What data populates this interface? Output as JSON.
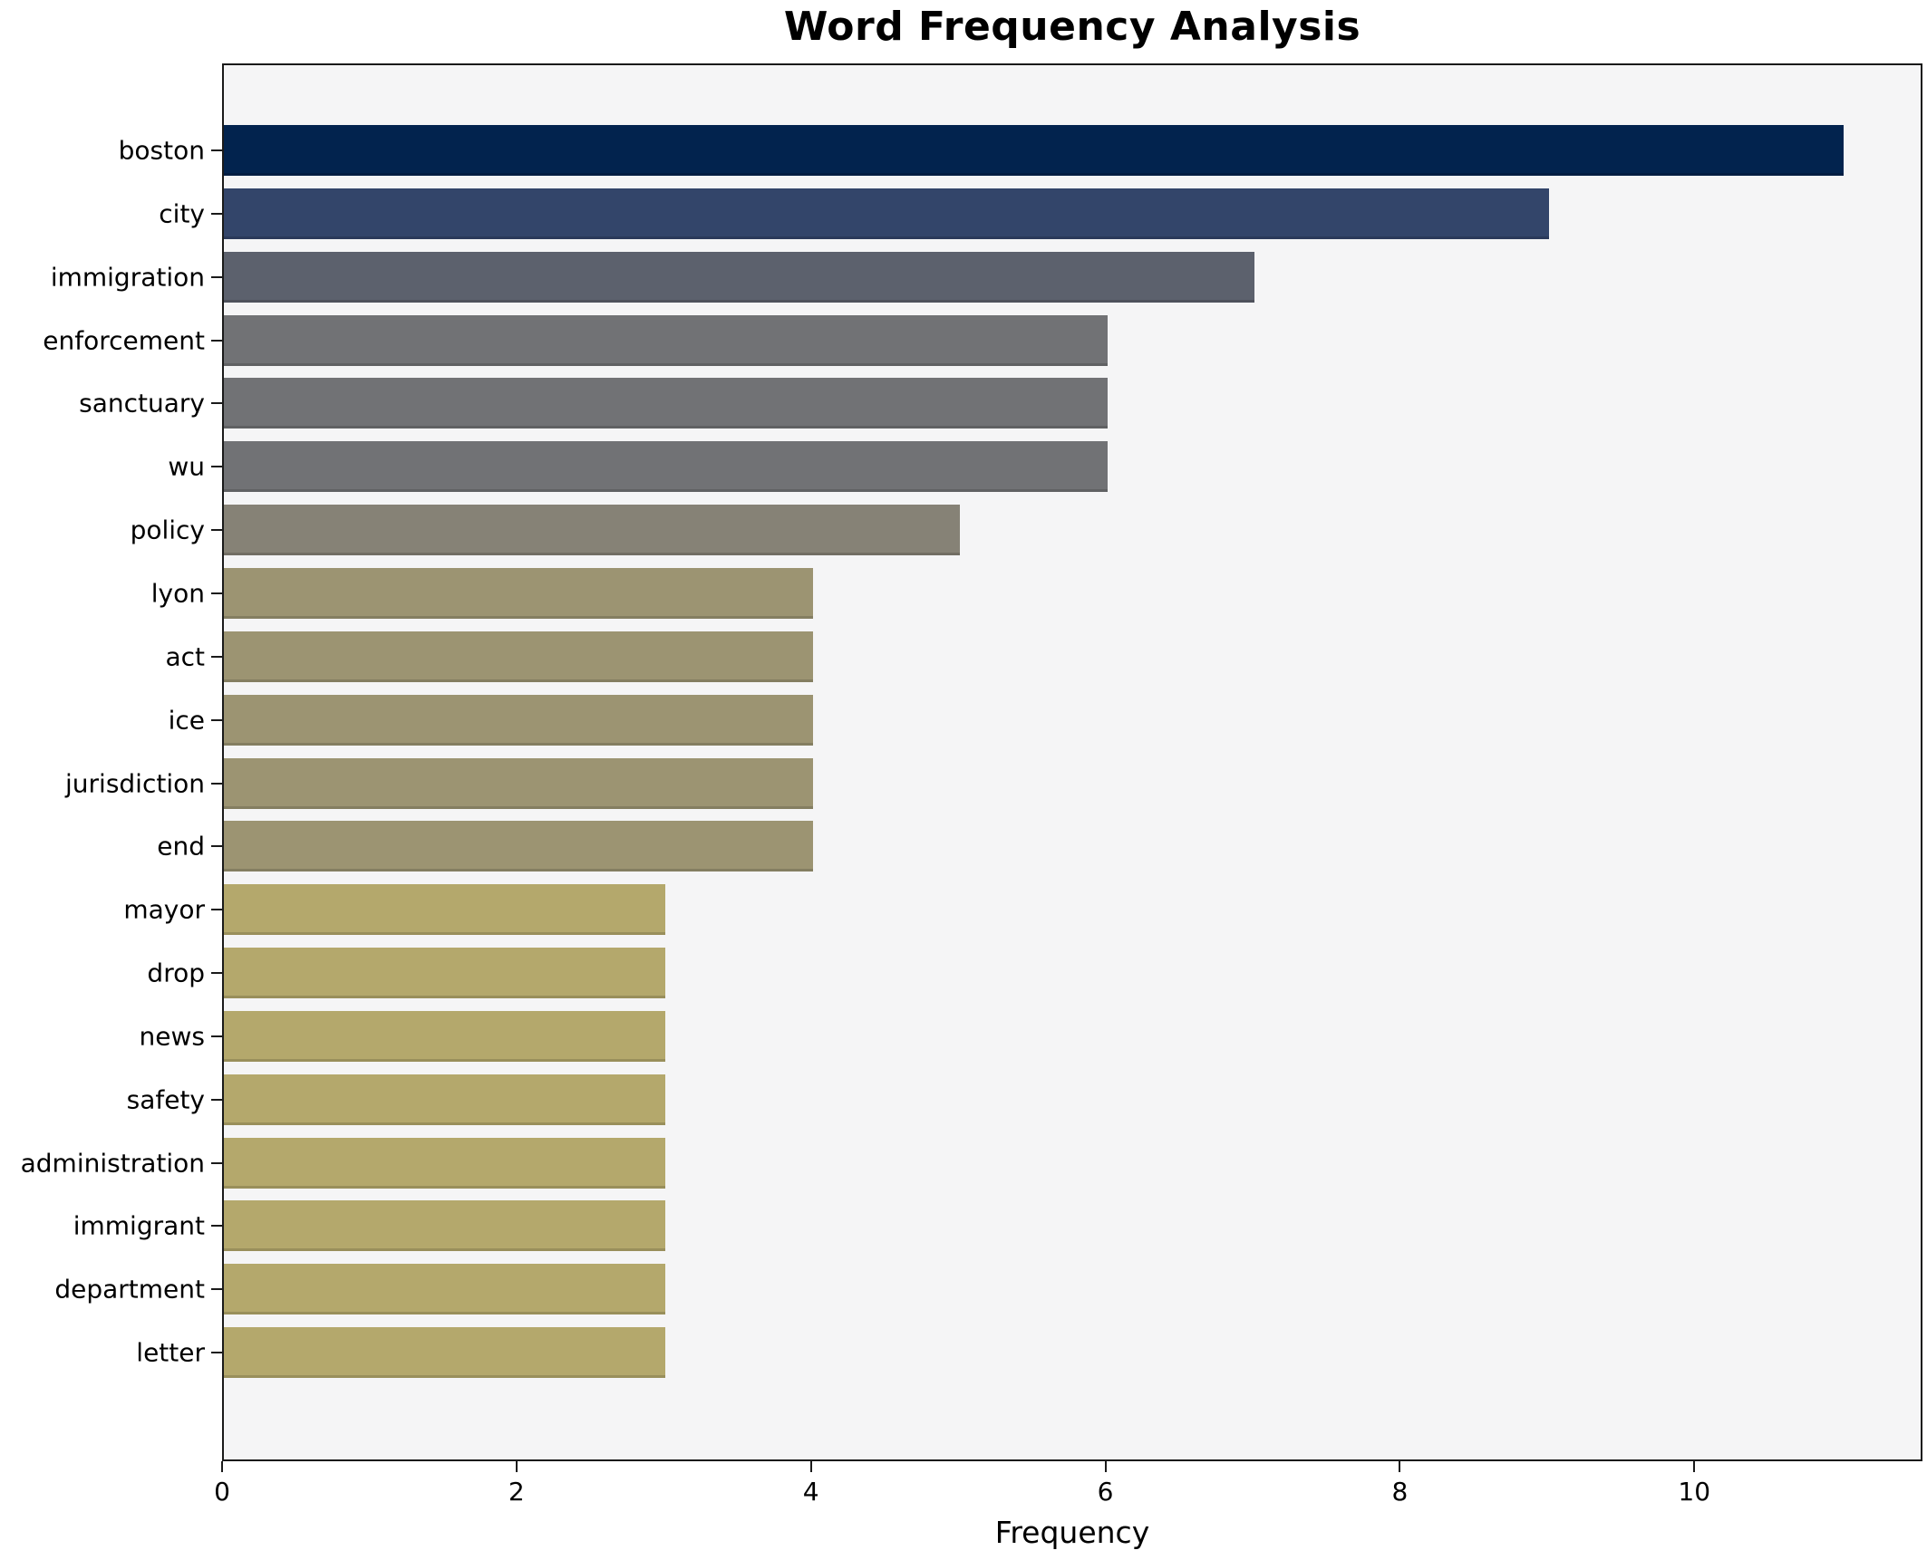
{
  "title": "Word Frequency Analysis",
  "x_axis_label": "Frequency",
  "chart_data": {
    "type": "bar",
    "orientation": "horizontal",
    "title": "Word Frequency Analysis",
    "xlabel": "Frequency",
    "ylabel": "",
    "categories": [
      "boston",
      "city",
      "immigration",
      "enforcement",
      "sanctuary",
      "wu",
      "policy",
      "lyon",
      "act",
      "ice",
      "jurisdiction",
      "end",
      "mayor",
      "drop",
      "news",
      "safety",
      "administration",
      "immigrant",
      "department",
      "letter"
    ],
    "values": [
      11,
      9,
      7,
      6,
      6,
      6,
      5,
      4,
      4,
      4,
      4,
      4,
      3,
      3,
      3,
      3,
      3,
      3,
      3,
      3
    ],
    "bar_colors": [
      "#02234e",
      "#33456a",
      "#5c616d",
      "#717275",
      "#717275",
      "#717275",
      "#868276",
      "#9c9472",
      "#9c9472",
      "#9c9472",
      "#9c9472",
      "#9c9472",
      "#b4a86c",
      "#b4a86c",
      "#b4a86c",
      "#b4a86c",
      "#b4a86c",
      "#b4a86c",
      "#b4a86c",
      "#b4a86c"
    ],
    "xticks": [
      0,
      2,
      4,
      6,
      8,
      10
    ],
    "xlim": [
      0,
      11.55
    ],
    "grid": false,
    "legend_position": "none",
    "plot_background": "#f5f5f6",
    "figure_background": "#ffffff",
    "spine_color": "#1a1a1a"
  }
}
